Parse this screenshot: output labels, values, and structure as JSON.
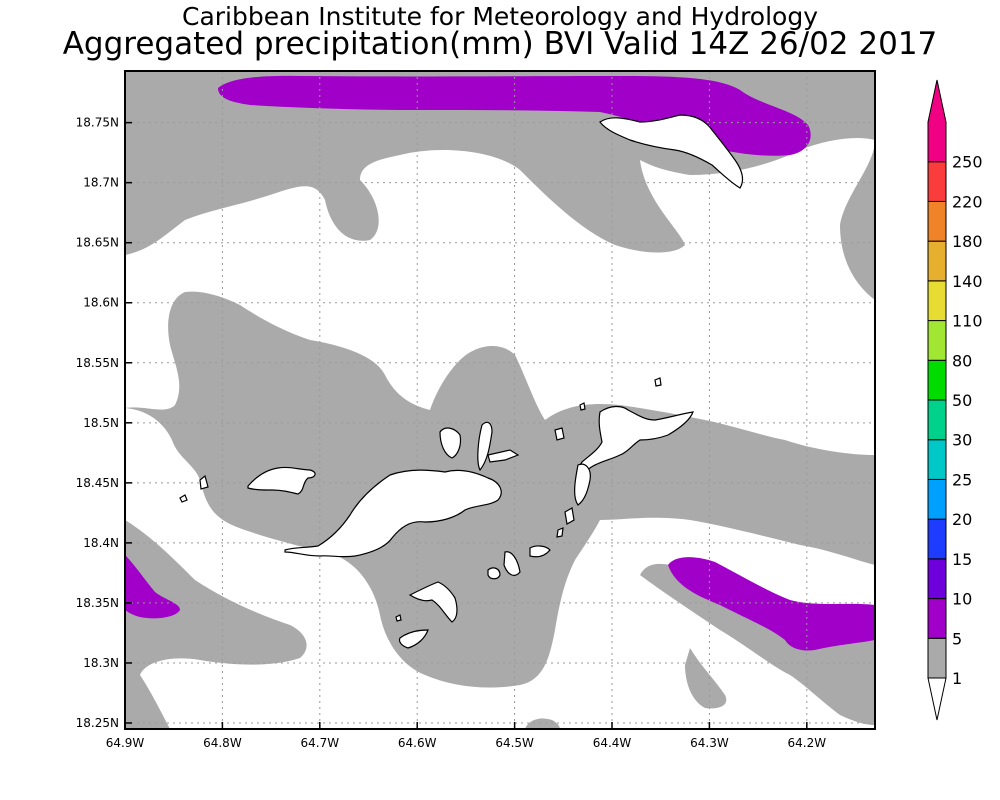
{
  "title": {
    "line1": "Caribbean Institute for Meteorology and Hydrology",
    "line2": "Aggregated precipitation(mm) BVI Valid 14Z 26/02 2017"
  },
  "map": {
    "x_ticks": [
      "64.9W",
      "64.8W",
      "64.7W",
      "64.6W",
      "64.5W",
      "64.4W",
      "64.3W",
      "64.2W"
    ],
    "y_ticks": [
      "18.75N",
      "18.7N",
      "18.65N",
      "18.6N",
      "18.55N",
      "18.5N",
      "18.45N",
      "18.4N",
      "18.35N",
      "18.3N",
      "18.25N"
    ],
    "lon_range": [
      -64.9,
      -64.13
    ],
    "lat_range": [
      18.245,
      18.793
    ],
    "grid": true,
    "grid_style": "dotted",
    "fill_colors": {
      "1-5": "#aaaaaa",
      "5-10": "#a000c8",
      "land_outline": "#000000",
      "land_fill": "#ffffff"
    }
  },
  "colorbar": {
    "labels": [
      "1",
      "5",
      "10",
      "15",
      "20",
      "25",
      "30",
      "50",
      "80",
      "110",
      "140",
      "180",
      "220",
      "250"
    ],
    "colors": [
      "#aaaaaa",
      "#a000c8",
      "#6e00dc",
      "#1e3cff",
      "#00a0ff",
      "#00c8c8",
      "#00d28c",
      "#00dc00",
      "#a0e632",
      "#e6dc32",
      "#e6af2d",
      "#f08228",
      "#fa3c3c",
      "#f00082"
    ]
  }
}
